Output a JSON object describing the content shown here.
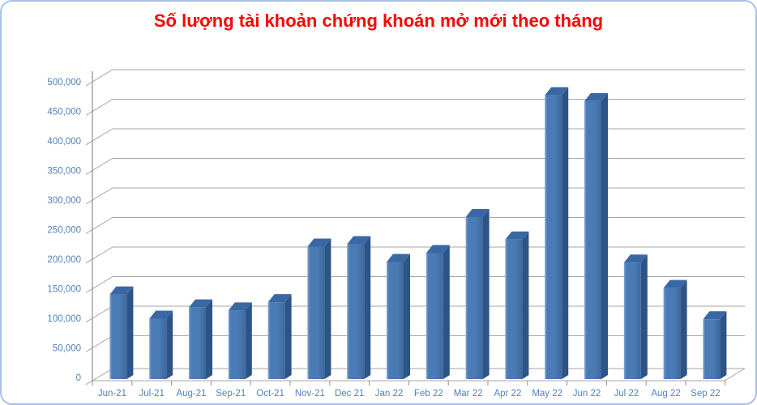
{
  "chart_data": {
    "type": "bar",
    "style": "3d-column",
    "title": "Số lượng tài khoản chứng khoán mở mới theo tháng",
    "categories": [
      "Jun-21",
      "Jul-21",
      "Aug-21",
      "Sep-21",
      "Oct-21",
      "Nov-21",
      "Dec 21",
      "Jan 22",
      "Feb 22",
      "Mar 22",
      "Apr 22",
      "May 22",
      "Jun 22",
      "Jul 22",
      "Aug 22",
      "Sep 22"
    ],
    "values": [
      143000,
      102000,
      121000,
      116000,
      130000,
      224000,
      228000,
      198000,
      213000,
      274000,
      236000,
      480000,
      470000,
      197000,
      154000,
      101000
    ],
    "xlabel": "",
    "ylabel": "",
    "ylim": [
      0,
      500000
    ],
    "ytick_step": 50000,
    "yticks": {
      "values": [
        0,
        50000,
        100000,
        150000,
        200000,
        250000,
        300000,
        350000,
        400000,
        450000,
        500000
      ],
      "labels": [
        "0",
        "50,000",
        "100,000",
        "150,000",
        "200,000",
        "250,000",
        "300,000",
        "350,000",
        "400,000",
        "450,000",
        "500,000"
      ]
    },
    "grid": true,
    "legend": "none",
    "colors": {
      "title": "#ff0000",
      "axis_labels": "#4f81bd",
      "gridline": "#a6a6a6",
      "axis_line": "#8e8e8e",
      "bar_front_light": "#7fa5d5",
      "bar_front": "#4a7bb5",
      "bar_front_dark": "#3d689b",
      "bar_side": "#2d5486",
      "bar_top": "#3a68a4",
      "card_border": "#a9c0e6"
    }
  }
}
